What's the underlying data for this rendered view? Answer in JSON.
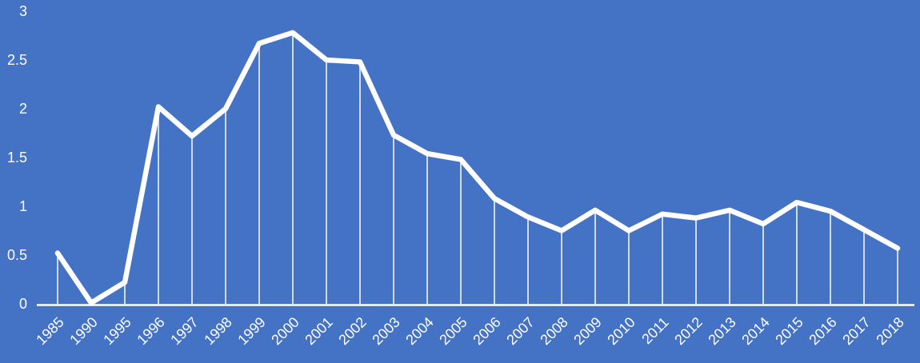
{
  "chart_data": {
    "type": "line",
    "categories": [
      "1985",
      "1990",
      "1995",
      "1996",
      "1997",
      "1998",
      "1999",
      "2000",
      "2001",
      "2002",
      "2003",
      "2004",
      "2005",
      "2006",
      "2007",
      "2008",
      "2009",
      "2010",
      "2011",
      "2012",
      "2013",
      "2014",
      "2015",
      "2016",
      "2017",
      "2018"
    ],
    "values": [
      0.52,
      0.01,
      0.22,
      2.02,
      1.72,
      2.0,
      2.67,
      2.78,
      2.5,
      2.48,
      1.73,
      1.54,
      1.48,
      1.08,
      0.89,
      0.75,
      0.96,
      0.75,
      0.92,
      0.88,
      0.96,
      0.82,
      1.04,
      0.95,
      0.76,
      0.57
    ],
    "ylim": [
      0,
      3
    ],
    "yticks": [
      0,
      0.5,
      1,
      1.5,
      2,
      2.5,
      3
    ],
    "ytick_labels": [
      "0",
      "0.5",
      "1",
      "1.5",
      "2",
      "2.5",
      "3"
    ],
    "xtick_label_rotation_deg": -45,
    "legend": "none",
    "grid": "off",
    "droplines": "vertical white drop line from each data point to the x-axis",
    "colors": {
      "background": "#4472C4",
      "line": "#FFFFFF",
      "dropline": "rgba(255,255,255,0.75)",
      "axis_line": "#FFFFFF",
      "tick_labels": "#FFFFFF"
    }
  }
}
